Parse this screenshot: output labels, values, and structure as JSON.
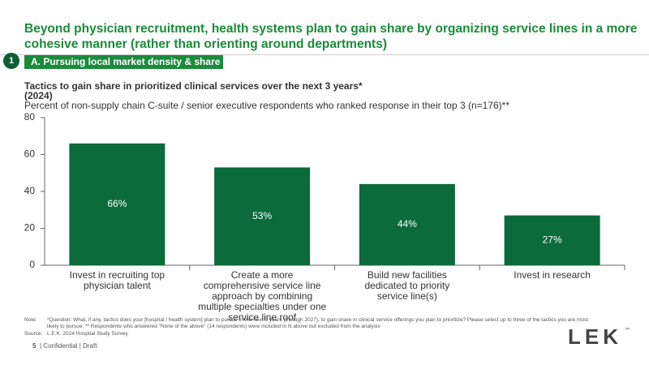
{
  "header": {
    "title": "Beyond physician recruitment, health systems plan to gain share by organizing service lines in a more cohesive manner (rather than orienting around departments)",
    "section_number": "1",
    "section_label": "A. Pursuing local market density & share"
  },
  "chart_data": {
    "type": "bar",
    "title": "Tactics to gain share in prioritized clinical services over the next 3 years*",
    "title_line2": "(2024)",
    "subtitle": "Percent of non-supply chain C-suite / senior executive respondents who ranked response in their top 3 (n=176)**",
    "categories": [
      "Invest in recruiting top physician talent",
      "Create a more comprehensive service line approach by combining multiple specialties under one service line roof",
      "Build new facilities dedicated to priority service line(s)",
      "Invest in research"
    ],
    "values": [
      66,
      53,
      44,
      27
    ],
    "value_labels": [
      "66%",
      "53%",
      "44%",
      "27%"
    ],
    "color": "#0b6b3a",
    "ylim": [
      0,
      80
    ],
    "yticks": [
      0,
      20,
      40,
      60,
      80
    ],
    "grid": false
  },
  "footer": {
    "note_label": "Note:",
    "note": "*Question: What, if any, tactics does your [hospital / health system] plan to pursue in the next 3 years (through 2027), to gain share in clinical service offerings you plan to prioritize? Please select up to three of the tactics you are most likely to pursue; ** Respondents who answered \"None of the above\" (14 respondents) were included in N above but excluded from the analysis",
    "source_label": "Source:",
    "source": "L.E.K. 2024 Hospital Study Survey",
    "page": "5",
    "status": "| Confidential | Draft",
    "logo": "LEK",
    "logo_mark": "™"
  }
}
